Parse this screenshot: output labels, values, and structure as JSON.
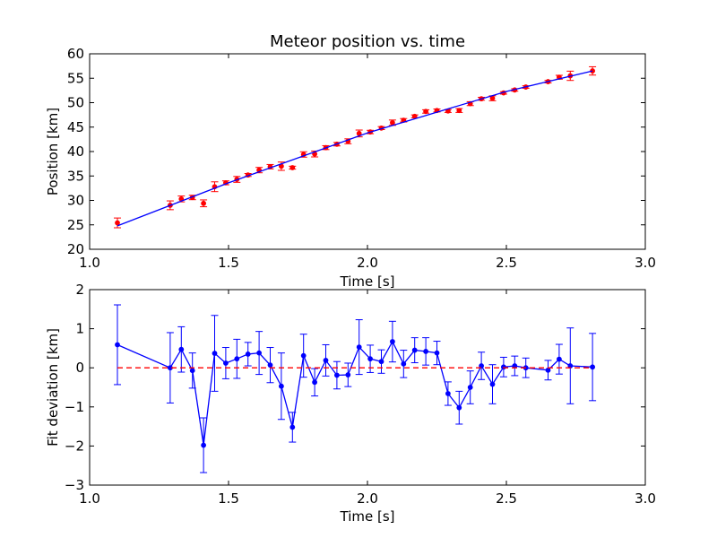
{
  "chart_data": [
    {
      "type": "scatter",
      "title": "Meteor position vs. time",
      "xlabel": "Time [s]",
      "ylabel": "Position [km]",
      "xlim": [
        1.0,
        3.0
      ],
      "ylim": [
        20,
        60
      ],
      "xticks": [
        "1.0",
        "1.5",
        "2.0",
        "2.5",
        "3.0"
      ],
      "yticks": [
        "20",
        "25",
        "30",
        "35",
        "40",
        "45",
        "50",
        "55",
        "60"
      ],
      "grid": false,
      "series": [
        {
          "style": "points-with-errorbars",
          "color": "#ff0000",
          "x": [
            1.1,
            1.29,
            1.33,
            1.37,
            1.41,
            1.45,
            1.49,
            1.53,
            1.57,
            1.61,
            1.65,
            1.69,
            1.73,
            1.77,
            1.81,
            1.85,
            1.89,
            1.93,
            1.97,
            2.01,
            2.05,
            2.09,
            2.13,
            2.17,
            2.21,
            2.25,
            2.29,
            2.33,
            2.37,
            2.41,
            2.45,
            2.49,
            2.53,
            2.57,
            2.65,
            2.69,
            2.73,
            2.81
          ],
          "y": [
            25.4,
            29.0,
            30.3,
            30.6,
            29.4,
            32.8,
            33.6,
            34.3,
            35.2,
            36.2,
            36.9,
            37.0,
            36.7,
            39.4,
            39.5,
            40.8,
            41.5,
            42.1,
            43.7,
            44.0,
            44.8,
            45.9,
            46.4,
            47.2,
            48.2,
            48.4,
            48.3,
            48.4,
            49.8,
            50.8,
            50.9,
            52.0,
            52.6,
            53.2,
            54.3,
            55.2,
            55.5,
            56.5
          ],
          "err": [
            1.0,
            0.9,
            0.6,
            0.45,
            0.7,
            1.0,
            0.4,
            0.6,
            0.3,
            0.55,
            0.45,
            0.85,
            0.3,
            0.55,
            0.6,
            0.4,
            0.35,
            0.5,
            0.7,
            0.35,
            0.3,
            0.55,
            0.35,
            0.3,
            0.35,
            0.3,
            0.3,
            0.4,
            0.4,
            0.3,
            0.5,
            0.25,
            0.25,
            0.25,
            0.25,
            0.4,
            0.95,
            0.85
          ]
        },
        {
          "style": "line",
          "color": "#0000ff",
          "x": [
            1.1,
            1.5,
            2.0,
            2.5,
            2.81
          ],
          "y": [
            24.8,
            33.6,
            43.8,
            52.3,
            56.5
          ]
        }
      ]
    },
    {
      "type": "line",
      "title": "",
      "xlabel": "Time [s]",
      "ylabel": "Fit deviation [km]",
      "xlim": [
        1.0,
        3.0
      ],
      "ylim": [
        -3,
        2
      ],
      "xticks": [
        "1.0",
        "1.5",
        "2.0",
        "2.5",
        "3.0"
      ],
      "yticks": [
        "−3",
        "−2",
        "−1",
        "0",
        "1",
        "2"
      ],
      "grid": false,
      "series": [
        {
          "style": "line-points-errorbars",
          "color": "#0000ff",
          "x": [
            1.1,
            1.29,
            1.33,
            1.37,
            1.41,
            1.45,
            1.49,
            1.53,
            1.57,
            1.61,
            1.65,
            1.69,
            1.73,
            1.77,
            1.81,
            1.85,
            1.89,
            1.93,
            1.97,
            2.01,
            2.05,
            2.09,
            2.13,
            2.17,
            2.21,
            2.25,
            2.29,
            2.33,
            2.37,
            2.41,
            2.45,
            2.49,
            2.53,
            2.57,
            2.65,
            2.69,
            2.73,
            2.81
          ],
          "y": [
            0.59,
            0.0,
            0.47,
            -0.07,
            -1.98,
            0.37,
            0.12,
            0.23,
            0.35,
            0.38,
            0.07,
            -0.47,
            -1.52,
            0.31,
            -0.37,
            0.19,
            -0.19,
            -0.18,
            0.53,
            0.23,
            0.16,
            0.67,
            0.1,
            0.45,
            0.42,
            0.38,
            -0.66,
            -1.02,
            -0.5,
            0.05,
            -0.42,
            0.02,
            0.05,
            0.0,
            -0.06,
            0.22,
            0.05,
            0.02
          ],
          "err": [
            1.02,
            0.9,
            0.58,
            0.45,
            0.7,
            0.97,
            0.4,
            0.5,
            0.3,
            0.55,
            0.45,
            0.85,
            0.38,
            0.55,
            0.35,
            0.4,
            0.35,
            0.3,
            0.7,
            0.35,
            0.3,
            0.52,
            0.35,
            0.32,
            0.35,
            0.3,
            0.3,
            0.42,
            0.42,
            0.35,
            0.5,
            0.25,
            0.25,
            0.25,
            0.25,
            0.38,
            0.97,
            0.86
          ]
        },
        {
          "style": "dashed-line",
          "color": "#ff0000",
          "x": [
            1.1,
            2.81
          ],
          "y": [
            0,
            0
          ]
        }
      ]
    }
  ]
}
